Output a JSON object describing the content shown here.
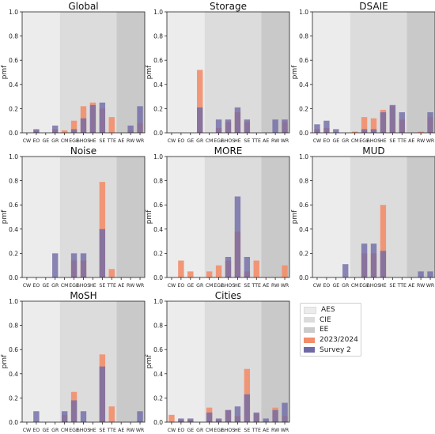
{
  "chart_data": [
    {
      "type": "bar",
      "title": "Global",
      "ylabel": "pmf",
      "ylim": [
        0,
        1.0
      ],
      "yticks": [
        "0.0",
        "0.2",
        "0.4",
        "0.6",
        "0.8",
        "1.0"
      ],
      "categories": [
        "CW",
        "EO",
        "GE",
        "GR",
        "CM",
        "EGE",
        "nHOS",
        "HE",
        "SE",
        "TTE",
        "AE",
        "RW",
        "WR"
      ],
      "series": [
        {
          "name": "2023/2024",
          "values": [
            0,
            0.02,
            0,
            0.03,
            0.02,
            0.1,
            0.22,
            0.25,
            0.2,
            0.13,
            0,
            0.02,
            0.08
          ]
        },
        {
          "name": "Survey 2",
          "values": [
            0,
            0.03,
            0,
            0.06,
            0,
            0.03,
            0.12,
            0.23,
            0.25,
            0,
            0,
            0.06,
            0.22
          ]
        }
      ]
    },
    {
      "type": "bar",
      "title": "Storage",
      "ylabel": "pmf",
      "ylim": [
        0,
        1.0
      ],
      "yticks": [
        "0.0",
        "0.2",
        "0.4",
        "0.6",
        "0.8",
        "1.0"
      ],
      "categories": [
        "CW",
        "EO",
        "GE",
        "GR",
        "CM",
        "EGE",
        "nHOS",
        "HE",
        "SE",
        "TTE",
        "AE",
        "RW",
        "WR"
      ],
      "series": [
        {
          "name": "2023/2024",
          "values": [
            0,
            0,
            0,
            0.52,
            0,
            0.04,
            0.09,
            0.17,
            0.09,
            0,
            0,
            0,
            0.09
          ]
        },
        {
          "name": "Survey 2",
          "values": [
            0,
            0,
            0,
            0.21,
            0,
            0.11,
            0.11,
            0.21,
            0.11,
            0,
            0,
            0.11,
            0.11
          ]
        }
      ]
    },
    {
      "type": "bar",
      "title": "DSAIE",
      "ylabel": "pmf",
      "ylim": [
        0,
        1.0
      ],
      "yticks": [
        "0.0",
        "0.2",
        "0.4",
        "0.6",
        "0.8",
        "1.0"
      ],
      "categories": [
        "CW",
        "EO",
        "GE",
        "GR",
        "CM",
        "EGE",
        "nHOS",
        "HE",
        "SE",
        "TTE",
        "AE",
        "RW",
        "WR"
      ],
      "series": [
        {
          "name": "2023/2024",
          "values": [
            0.03,
            0.04,
            0,
            0,
            0.01,
            0.13,
            0.12,
            0.19,
            0.22,
            0.11,
            0,
            0.01,
            0.13
          ]
        },
        {
          "name": "Survey 2",
          "values": [
            0.07,
            0.1,
            0.03,
            0,
            0,
            0.03,
            0.03,
            0.17,
            0.23,
            0.17,
            0,
            0,
            0.17
          ]
        }
      ]
    },
    {
      "type": "bar",
      "title": "Noise",
      "ylabel": "pmf",
      "ylim": [
        0,
        1.0
      ],
      "yticks": [
        "0.0",
        "0.2",
        "0.4",
        "0.6",
        "0.8",
        "1.0"
      ],
      "categories": [
        "CW",
        "EO",
        "GE",
        "GR",
        "CM",
        "EGE",
        "nHOS",
        "HE",
        "SE",
        "TTE",
        "AE",
        "RW",
        "WR"
      ],
      "series": [
        {
          "name": "2023/2024",
          "values": [
            0,
            0,
            0,
            0,
            0,
            0.14,
            0.14,
            0,
            0.79,
            0.07,
            0,
            0,
            0
          ]
        },
        {
          "name": "Survey 2",
          "values": [
            0,
            0,
            0,
            0.2,
            0,
            0.2,
            0.2,
            0,
            0.4,
            0,
            0,
            0,
            0
          ]
        }
      ]
    },
    {
      "type": "bar",
      "title": "MORE",
      "ylabel": "pmf",
      "ylim": [
        0,
        1.0
      ],
      "yticks": [
        "0.0",
        "0.2",
        "0.4",
        "0.6",
        "0.8",
        "1.0"
      ],
      "categories": [
        "CW",
        "EO",
        "GE",
        "GR",
        "CM",
        "EGE",
        "nHOS",
        "HE",
        "SE",
        "TTE",
        "AE",
        "RW",
        "WR"
      ],
      "series": [
        {
          "name": "2023/2024",
          "values": [
            0,
            0.14,
            0.05,
            0,
            0.05,
            0.1,
            0.14,
            0.38,
            0.05,
            0.14,
            0,
            0,
            0.1
          ]
        },
        {
          "name": "Survey 2",
          "values": [
            0,
            0,
            0,
            0,
            0,
            0,
            0.17,
            0.67,
            0.17,
            0,
            0,
            0,
            0
          ]
        }
      ]
    },
    {
      "type": "bar",
      "title": "MUD",
      "ylabel": "pmf",
      "ylim": [
        0,
        1.0
      ],
      "yticks": [
        "0.0",
        "0.2",
        "0.4",
        "0.6",
        "0.8",
        "1.0"
      ],
      "categories": [
        "CW",
        "EO",
        "GE",
        "GR",
        "CM",
        "EGE",
        "nHOS",
        "HE",
        "SE",
        "TTE",
        "AE",
        "RW",
        "WR"
      ],
      "series": [
        {
          "name": "2023/2024",
          "values": [
            0,
            0,
            0,
            0,
            0,
            0.2,
            0.2,
            0.6,
            0,
            0,
            0,
            0,
            0
          ]
        },
        {
          "name": "Survey 2",
          "values": [
            0,
            0,
            0,
            0.11,
            0,
            0.28,
            0.28,
            0.22,
            0,
            0,
            0,
            0.05,
            0.05
          ]
        }
      ]
    },
    {
      "type": "bar",
      "title": "MoSH",
      "ylabel": "pmf",
      "ylim": [
        0,
        1.0
      ],
      "yticks": [
        "0.0",
        "0.2",
        "0.4",
        "0.6",
        "0.8",
        "1.0"
      ],
      "categories": [
        "CW",
        "EO",
        "GE",
        "GR",
        "CM",
        "EGE",
        "nHOS",
        "HE",
        "SE",
        "TTE",
        "AE",
        "RW",
        "WR"
      ],
      "series": [
        {
          "name": "2023/2024",
          "values": [
            0,
            0,
            0,
            0,
            0.06,
            0.25,
            0,
            0,
            0.56,
            0.13,
            0,
            0,
            0
          ]
        },
        {
          "name": "Survey 2",
          "values": [
            0,
            0.09,
            0,
            0,
            0.09,
            0.18,
            0.09,
            0,
            0.46,
            0,
            0,
            0,
            0.09
          ]
        }
      ]
    },
    {
      "type": "bar",
      "title": "Cities",
      "ylabel": "pmf",
      "ylim": [
        0,
        1.0
      ],
      "yticks": [
        "0.0",
        "0.2",
        "0.4",
        "0.6",
        "0.8",
        "1.0"
      ],
      "categories": [
        "CW",
        "EO",
        "GE",
        "GR",
        "CM",
        "EGE",
        "nHOS",
        "HE",
        "SE",
        "TTE",
        "AE",
        "RW",
        "WR"
      ],
      "series": [
        {
          "name": "2023/2024",
          "values": [
            0.06,
            0.02,
            0.02,
            0,
            0.12,
            0.02,
            0.1,
            0.05,
            0.44,
            0.07,
            0,
            0.12,
            0.05
          ]
        },
        {
          "name": "Survey 2",
          "values": [
            0,
            0.03,
            0.03,
            0,
            0.08,
            0.03,
            0.1,
            0.13,
            0.23,
            0.08,
            0.03,
            0.1,
            0.16
          ]
        }
      ]
    }
  ],
  "legend": {
    "placement": "bottom-right",
    "items": [
      {
        "label": "AES",
        "color": "#ececec"
      },
      {
        "label": "CIE",
        "color": "#dcdcdc"
      },
      {
        "label": "EE",
        "color": "#cbcbcb"
      },
      {
        "label": "2023/2024",
        "color": "#f28e6b"
      },
      {
        "label": "Survey 2",
        "color": "#6f6aa6"
      }
    ]
  },
  "colors": {
    "series_a": "#f28e6b",
    "series_b": "#6f6aa6",
    "region_aes": "#ececec",
    "region_cie": "#dcdcdc",
    "region_ee": "#c9c9c9"
  }
}
